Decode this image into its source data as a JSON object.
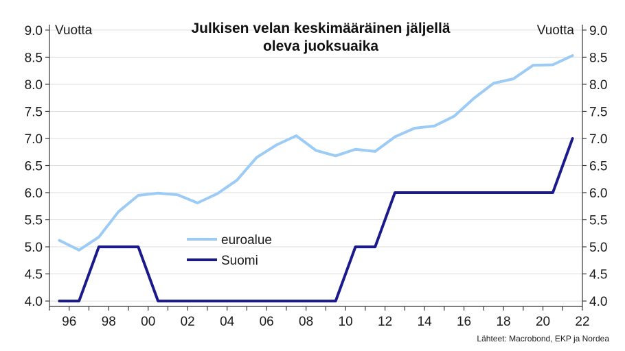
{
  "chart_data": {
    "type": "line",
    "title_lines": [
      "Julkisen velan keskimääräinen jäljellä",
      "oleva juoksuaika"
    ],
    "unit_left": "Vuotta",
    "unit_right": "Vuotta",
    "source": "Lähteet: Macrobond, EKP ja Nordea",
    "y_ticks": [
      "4.0",
      "4.5",
      "5.0",
      "5.5",
      "6.0",
      "6.5",
      "7.0",
      "7.5",
      "8.0",
      "8.5",
      "9.0"
    ],
    "x_ticks": [
      "96",
      "98",
      "00",
      "02",
      "04",
      "06",
      "08",
      "10",
      "12",
      "14",
      "16",
      "18",
      "20",
      "22"
    ],
    "xlim": [
      1995,
      2022
    ],
    "ylim": [
      3.9,
      9.1
    ],
    "grid": "horizontal",
    "legend_placement": "center-left",
    "series": [
      {
        "name": "euroalue",
        "color": "#9ccbf5",
        "x": [
          1995.5,
          1996.5,
          1997.5,
          1998.5,
          1999.5,
          2000.5,
          2001.5,
          2002.5,
          2003.5,
          2004.5,
          2005.5,
          2006.5,
          2007.5,
          2008.5,
          2009.5,
          2010.5,
          2011.5,
          2012.5,
          2013.5,
          2014.5,
          2015.5,
          2016.5,
          2017.5,
          2018.5,
          2019.5,
          2020.5,
          2021.5
        ],
        "values": [
          5.12,
          4.94,
          5.18,
          5.65,
          5.95,
          5.99,
          5.96,
          5.81,
          5.98,
          6.23,
          6.65,
          6.88,
          7.05,
          6.78,
          6.68,
          6.8,
          6.76,
          7.03,
          7.19,
          7.23,
          7.41,
          7.74,
          8.02,
          8.1,
          8.35,
          8.36,
          8.53
        ]
      },
      {
        "name": "Suomi",
        "color": "#1a1a8c",
        "x": [
          1995.5,
          1996.5,
          1997.5,
          1998.5,
          1999.5,
          2000.5,
          2001.5,
          2002.5,
          2003.5,
          2004.5,
          2005.5,
          2006.5,
          2007.5,
          2008.5,
          2009.5,
          2010.5,
          2011.5,
          2012.5,
          2013.5,
          2014.5,
          2015.5,
          2016.5,
          2017.5,
          2018.5,
          2019.5,
          2020.5,
          2021.5
        ],
        "values": [
          4.0,
          4.0,
          5.0,
          5.0,
          5.0,
          4.0,
          4.0,
          4.0,
          4.0,
          4.0,
          4.0,
          4.0,
          4.0,
          4.0,
          4.0,
          5.0,
          5.0,
          6.0,
          6.0,
          6.0,
          6.0,
          6.0,
          6.0,
          6.0,
          6.0,
          6.0,
          7.0
        ]
      }
    ]
  }
}
